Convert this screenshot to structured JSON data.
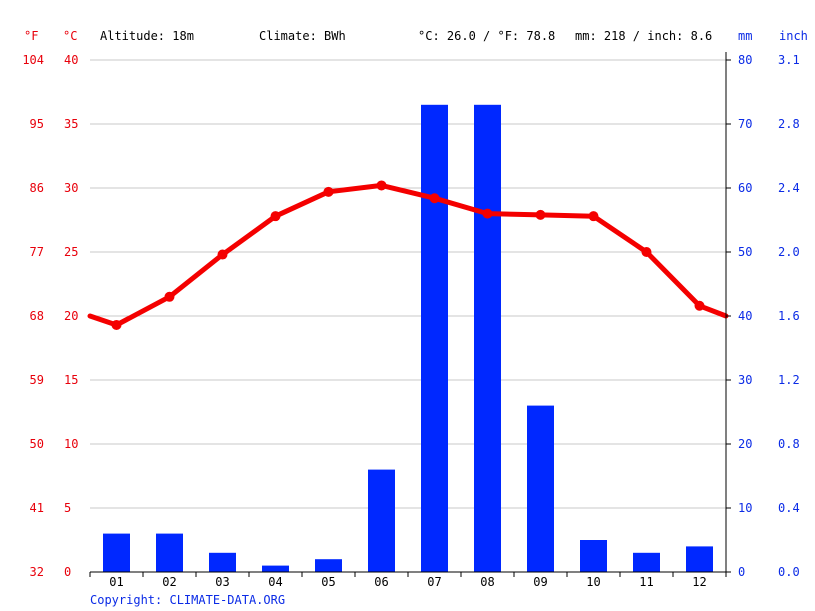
{
  "header": {
    "unit_f": "°F",
    "unit_c": "°C",
    "altitude": "Altitude: 18m",
    "climate": "Climate: BWh",
    "temp_avg": "°C: 26.0 / °F: 78.8",
    "precip_total": "mm: 218 / inch: 8.6",
    "unit_mm": "mm",
    "unit_inch": "inch"
  },
  "copyright": "Copyright: CLIMATE-DATA.ORG",
  "colors": {
    "temperature": "#f40000",
    "precipitation": "#0028ff",
    "left_axis_text": "#e8000b",
    "right_axis_text": "#0b2be6",
    "grid": "#c8c8c8"
  },
  "chart_data": {
    "type": "bar",
    "categories": [
      "01",
      "02",
      "03",
      "04",
      "05",
      "06",
      "07",
      "08",
      "09",
      "10",
      "11",
      "12"
    ],
    "series": [
      {
        "type": "bar",
        "axis": "right",
        "unit": "mm",
        "values": [
          6,
          6,
          3,
          1,
          2,
          16,
          73,
          73,
          26,
          5,
          3,
          4
        ]
      },
      {
        "type": "line",
        "axis": "left",
        "unit": "°C",
        "values": [
          19.3,
          21.5,
          24.8,
          27.8,
          29.7,
          30.2,
          29.2,
          28.0,
          27.9,
          27.8,
          25.0,
          20.8
        ]
      }
    ],
    "y_left_c_ticks": [
      "0",
      "5",
      "10",
      "15",
      "20",
      "25",
      "30",
      "35",
      "40"
    ],
    "y_left_f_ticks": [
      "32",
      "41",
      "50",
      "59",
      "68",
      "77",
      "86",
      "95",
      "104"
    ],
    "y_right_mm_ticks": [
      "0",
      "10",
      "20",
      "30",
      "40",
      "50",
      "60",
      "70",
      "80"
    ],
    "y_right_inch_ticks": [
      "0.0",
      "0.4",
      "0.8",
      "1.2",
      "1.6",
      "2.0",
      "2.4",
      "2.8",
      "3.1"
    ],
    "ylim_c": [
      0,
      40
    ],
    "ylim_mm": [
      0,
      80
    ],
    "line_edges_c": [
      20.0,
      20.0
    ],
    "grid": true
  }
}
